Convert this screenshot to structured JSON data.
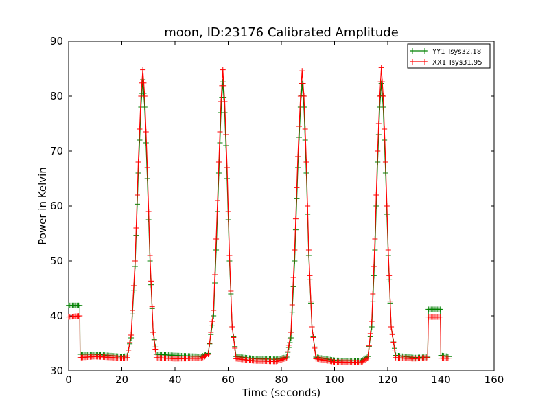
{
  "chart_data": {
    "type": "line",
    "title": "moon, ID:23176 Calibrated Amplitude",
    "xlabel": "Time (seconds)",
    "ylabel": "Power in Kelvin",
    "xlim": [
      0,
      160
    ],
    "ylim": [
      30,
      90
    ],
    "xticks": [
      0,
      20,
      40,
      60,
      80,
      100,
      120,
      140,
      160
    ],
    "yticks": [
      30,
      40,
      50,
      60,
      70,
      80,
      90
    ],
    "grid": false,
    "legend_position": "top-right",
    "series": [
      {
        "name": "YY1 Tsys32.18",
        "color": "#008000",
        "marker": "plus",
        "points": [
          [
            0,
            41.9
          ],
          [
            4.2,
            41.9
          ],
          [
            4.3,
            33.0
          ],
          [
            10,
            33.0
          ],
          [
            20,
            32.6
          ],
          [
            22,
            32.7
          ],
          [
            23.5,
            36.0
          ],
          [
            25,
            49.0
          ],
          [
            26.2,
            66.0
          ],
          [
            27.2,
            78.0
          ],
          [
            27.9,
            83.0
          ],
          [
            28.6,
            78.0
          ],
          [
            29.6,
            65.0
          ],
          [
            30.6,
            50.0
          ],
          [
            31.8,
            37.0
          ],
          [
            33,
            33.0
          ],
          [
            40,
            32.8
          ],
          [
            50,
            32.6
          ],
          [
            52.5,
            33.2
          ],
          [
            54.5,
            40.0
          ],
          [
            55.5,
            52.0
          ],
          [
            56.5,
            66.0
          ],
          [
            57.3,
            77.0
          ],
          [
            58,
            82.6
          ],
          [
            58.7,
            77.0
          ],
          [
            59.6,
            65.0
          ],
          [
            60.5,
            50.0
          ],
          [
            61.5,
            38.0
          ],
          [
            63,
            32.6
          ],
          [
            70,
            32.2
          ],
          [
            78,
            32.1
          ],
          [
            82,
            32.5
          ],
          [
            83.6,
            36.0
          ],
          [
            85,
            50.0
          ],
          [
            86.2,
            67.0
          ],
          [
            87.2,
            78.0
          ],
          [
            87.8,
            82.3
          ],
          [
            88.5,
            78.0
          ],
          [
            89.4,
            66.0
          ],
          [
            90.3,
            51.0
          ],
          [
            91.5,
            38.0
          ],
          [
            93,
            32.5
          ],
          [
            100,
            31.9
          ],
          [
            110,
            31.8
          ],
          [
            112.5,
            32.6
          ],
          [
            114,
            38.0
          ],
          [
            115.2,
            52.0
          ],
          [
            116.2,
            68.0
          ],
          [
            117,
            78.0
          ],
          [
            117.6,
            82.3
          ],
          [
            118.3,
            78.0
          ],
          [
            119.2,
            66.0
          ],
          [
            120.2,
            51.0
          ],
          [
            121.3,
            38.0
          ],
          [
            123,
            32.8
          ],
          [
            130,
            32.4
          ],
          [
            135,
            32.5
          ],
          [
            135.3,
            41.2
          ],
          [
            139.8,
            41.2
          ],
          [
            140,
            32.8
          ],
          [
            143,
            32.6
          ]
        ]
      },
      {
        "name": "XX1 Tsys31.95",
        "color": "#ff0000",
        "marker": "plus",
        "points": [
          [
            0,
            39.8
          ],
          [
            4.2,
            40.0
          ],
          [
            4.3,
            32.4
          ],
          [
            10,
            32.6
          ],
          [
            20,
            32.3
          ],
          [
            22,
            32.4
          ],
          [
            23.5,
            36.5
          ],
          [
            25,
            50.0
          ],
          [
            26.2,
            68.0
          ],
          [
            27.2,
            80.0
          ],
          [
            27.9,
            84.8
          ],
          [
            28.6,
            80.0
          ],
          [
            29.6,
            67.0
          ],
          [
            30.6,
            51.0
          ],
          [
            31.8,
            37.0
          ],
          [
            33,
            32.4
          ],
          [
            40,
            32.2
          ],
          [
            50,
            32.3
          ],
          [
            52.5,
            33.0
          ],
          [
            54.5,
            41.0
          ],
          [
            55.5,
            54.0
          ],
          [
            56.5,
            68.0
          ],
          [
            57.3,
            79.0
          ],
          [
            58,
            84.8
          ],
          [
            58.7,
            79.0
          ],
          [
            59.6,
            67.0
          ],
          [
            60.5,
            51.0
          ],
          [
            61.5,
            38.0
          ],
          [
            63,
            32.2
          ],
          [
            70,
            31.8
          ],
          [
            78,
            31.7
          ],
          [
            82,
            32.3
          ],
          [
            83.6,
            37.0
          ],
          [
            85,
            52.0
          ],
          [
            86.2,
            69.0
          ],
          [
            87.2,
            80.0
          ],
          [
            87.8,
            84.6
          ],
          [
            88.5,
            80.0
          ],
          [
            89.4,
            68.0
          ],
          [
            90.3,
            52.0
          ],
          [
            91.5,
            38.0
          ],
          [
            93,
            32.2
          ],
          [
            100,
            31.6
          ],
          [
            110,
            31.5
          ],
          [
            112.5,
            32.3
          ],
          [
            114,
            39.0
          ],
          [
            115.2,
            54.0
          ],
          [
            116.2,
            70.0
          ],
          [
            117,
            80.0
          ],
          [
            117.6,
            85.2
          ],
          [
            118.3,
            80.0
          ],
          [
            119.2,
            68.0
          ],
          [
            120.2,
            52.0
          ],
          [
            121.3,
            38.0
          ],
          [
            123,
            32.4
          ],
          [
            130,
            32.2
          ],
          [
            135,
            32.4
          ],
          [
            135.3,
            39.8
          ],
          [
            139.8,
            39.8
          ],
          [
            140,
            32.3
          ],
          [
            143,
            32.3
          ]
        ]
      }
    ]
  }
}
